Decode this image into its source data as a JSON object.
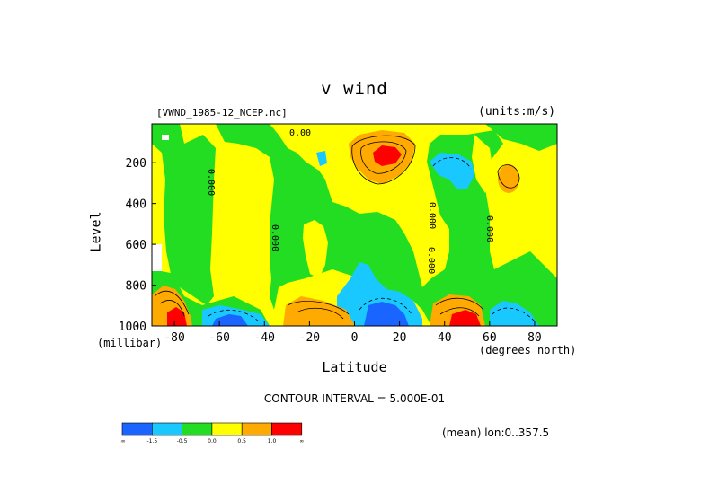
{
  "chart_data": {
    "type": "heatmap",
    "title": "v wind",
    "subtitle_left": "[VWND_1985-12_NCEP.nc]",
    "subtitle_right": "(units:m/s)",
    "xlabel": "Latitude",
    "xlabel_unit": "(degrees_north)",
    "ylabel": "Level",
    "ylabel_unit": "(millibar)",
    "xlim": [
      -90,
      90
    ],
    "ylim": [
      1000,
      10
    ],
    "x_ticks": [
      -80,
      -60,
      -40,
      -20,
      0,
      20,
      40,
      60,
      80
    ],
    "y_ticks": [
      200,
      400,
      600,
      800,
      1000
    ],
    "contour_interval_text": "CONTOUR INTERVAL = 5.000E-01",
    "mean_text": "(mean) lon:0..357.5",
    "contour_labels": [
      "0.00",
      "0.000",
      "0.000",
      "0.000",
      "0.000",
      "0.000"
    ],
    "colorbar": {
      "labels": [
        "-∞",
        "-1.5",
        "-0.5",
        "0.0",
        "0.5",
        "1.0",
        "∞"
      ],
      "colors": [
        "#1a64ff",
        "#19c8ff",
        "#22dd22",
        "#ffff00",
        "#ffaa00",
        "#ff0000"
      ]
    },
    "regions": [
      {
        "name": "band-0",
        "value": 0.2
      },
      {
        "name": "jet-northward-15N-upper",
        "value": 1.8
      },
      {
        "name": "jet-northward-80S-surface",
        "value": 1.8
      },
      {
        "name": "jet-southward-10N-surface",
        "value": -1.8
      },
      {
        "name": "jet-southward-57S-surface",
        "value": -1.8
      },
      {
        "name": "jet-northward-50N-surface",
        "value": 1.8
      }
    ]
  }
}
